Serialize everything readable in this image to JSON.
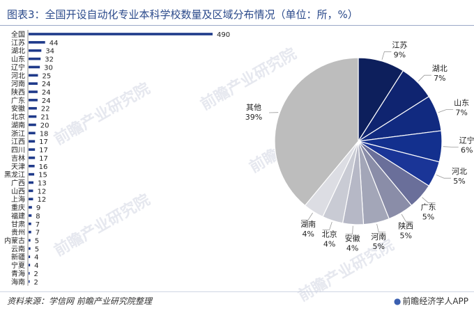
{
  "title": "图表3：全国开设自动化专业本科学校数量及区域分布情况（单位：所，%）",
  "source": "资料来源：学信网 前瞻产业研究院整理",
  "brand": "前瞻经济学人APP",
  "watermark": "前瞻产业研究院",
  "chart_data": [
    {
      "type": "bar",
      "orientation": "horizontal",
      "categories": [
        "全国",
        "江苏",
        "湖北",
        "山东",
        "辽宁",
        "河北",
        "河南",
        "陕西",
        "广东",
        "安徽",
        "北京",
        "湖南",
        "浙江",
        "江西",
        "四川",
        "吉林",
        "天津",
        "黑龙江",
        "广西",
        "山西",
        "上海",
        "重庆",
        "福建",
        "甘肃",
        "贵州",
        "内蒙古",
        "云南",
        "新疆",
        "宁夏",
        "青海",
        "海南"
      ],
      "values": [
        490,
        44,
        34,
        32,
        30,
        25,
        24,
        24,
        24,
        22,
        21,
        20,
        18,
        17,
        17,
        17,
        16,
        15,
        13,
        12,
        12,
        9,
        8,
        7,
        7,
        5,
        5,
        4,
        4,
        2,
        2
      ],
      "color": "#1f3a8a"
    },
    {
      "type": "pie",
      "slices": [
        {
          "label": "江苏",
          "value": 9,
          "color": "#0d1f5c"
        },
        {
          "label": "湖北",
          "value": 7,
          "color": "#0f2470"
        },
        {
          "label": "山东",
          "value": 7,
          "color": "#112a80"
        },
        {
          "label": "辽宁",
          "value": 6,
          "color": "#13308e"
        },
        {
          "label": "河北",
          "value": 5,
          "color": "#1a3597"
        },
        {
          "label": "广东",
          "value": 5,
          "color": "#6a6f9a"
        },
        {
          "label": "陕西",
          "value": 5,
          "color": "#8a8da8"
        },
        {
          "label": "河南",
          "value": 5,
          "color": "#a3a6b8"
        },
        {
          "label": "安徽",
          "value": 4,
          "color": "#b6b8c6"
        },
        {
          "label": "北京",
          "value": 4,
          "color": "#c9cbd4"
        },
        {
          "label": "湖南",
          "value": 4,
          "color": "#dcdde3"
        },
        {
          "label": "其他",
          "value": 39,
          "color": "#bdbdbd"
        }
      ],
      "unit": "%"
    }
  ]
}
